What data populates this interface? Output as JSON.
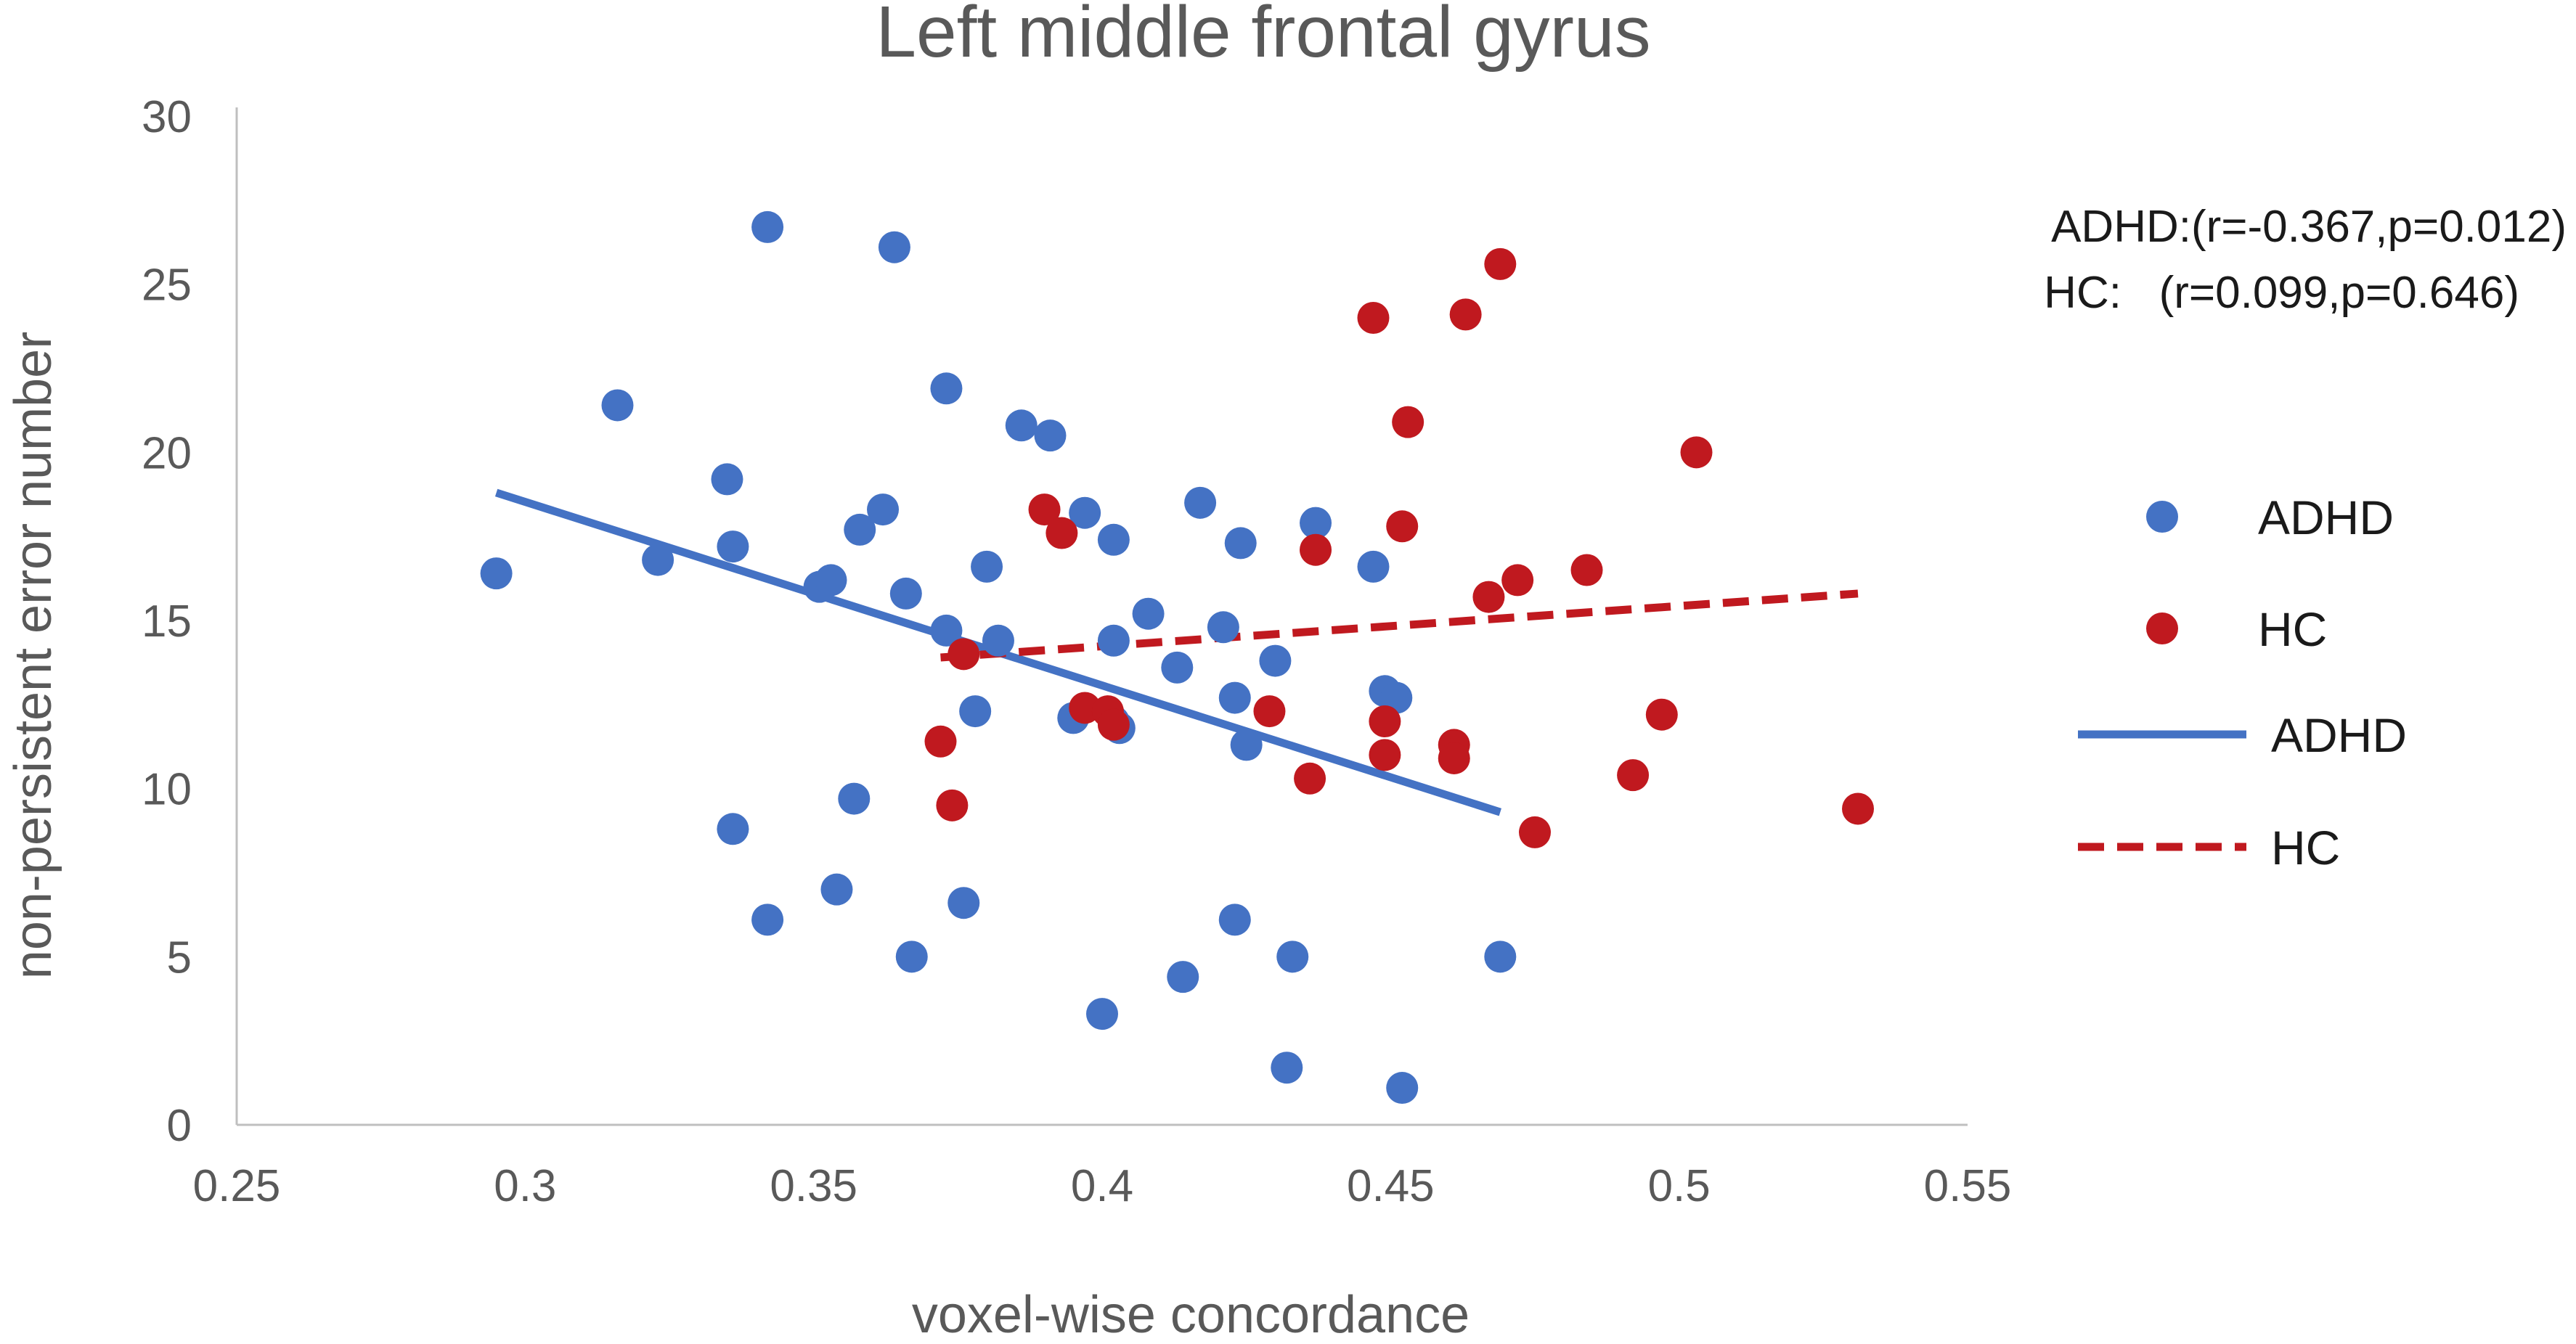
{
  "chart_data": {
    "type": "scatter",
    "title": "Left middle frontal gyrus",
    "xlabel": "voxel-wise concordance",
    "ylabel": "non-persistent error number",
    "xlim": [
      0.25,
      0.55
    ],
    "ylim": [
      0,
      30
    ],
    "xticks": [
      0.25,
      0.3,
      0.35,
      0.4,
      0.45,
      0.5,
      0.55
    ],
    "xtick_labels": [
      "0.25",
      "0.3",
      "0.35",
      "0.4",
      "0.45",
      "0.5",
      "0.55"
    ],
    "yticks": [
      0,
      5,
      10,
      15,
      20,
      25,
      30
    ],
    "ytick_labels": [
      "0",
      "5",
      "10",
      "15",
      "20",
      "25",
      "30"
    ],
    "grid": false,
    "legend_position": "right",
    "annotations": [
      "ADHD:(r=-0.367,p=0.012)",
      "HC:   (r=0.099,p=0.646)"
    ],
    "series": [
      {
        "name": "ADHD",
        "kind": "points",
        "color": "#4472c4",
        "points": [
          [
            0.295,
            16.4
          ],
          [
            0.316,
            21.4
          ],
          [
            0.323,
            16.8
          ],
          [
            0.335,
            19.2
          ],
          [
            0.336,
            17.2
          ],
          [
            0.336,
            8.8
          ],
          [
            0.342,
            26.7
          ],
          [
            0.342,
            6.1
          ],
          [
            0.351,
            16.0
          ],
          [
            0.353,
            16.2
          ],
          [
            0.354,
            7.0
          ],
          [
            0.357,
            9.7
          ],
          [
            0.358,
            17.7
          ],
          [
            0.362,
            18.3
          ],
          [
            0.364,
            26.1
          ],
          [
            0.366,
            15.8
          ],
          [
            0.367,
            5.0
          ],
          [
            0.373,
            21.9
          ],
          [
            0.373,
            14.7
          ],
          [
            0.376,
            6.6
          ],
          [
            0.378,
            12.3
          ],
          [
            0.38,
            16.6
          ],
          [
            0.382,
            14.4
          ],
          [
            0.386,
            20.8
          ],
          [
            0.391,
            20.5
          ],
          [
            0.395,
            12.1
          ],
          [
            0.397,
            18.2
          ],
          [
            0.4,
            3.3
          ],
          [
            0.402,
            17.4
          ],
          [
            0.402,
            14.4
          ],
          [
            0.402,
            12.0
          ],
          [
            0.403,
            11.8
          ],
          [
            0.408,
            15.2
          ],
          [
            0.413,
            13.6
          ],
          [
            0.414,
            4.4
          ],
          [
            0.417,
            18.5
          ],
          [
            0.421,
            14.8
          ],
          [
            0.423,
            12.7
          ],
          [
            0.423,
            6.1
          ],
          [
            0.424,
            17.3
          ],
          [
            0.425,
            11.3
          ],
          [
            0.43,
            13.8
          ],
          [
            0.432,
            1.7
          ],
          [
            0.433,
            5.0
          ],
          [
            0.437,
            17.9
          ],
          [
            0.447,
            16.6
          ],
          [
            0.449,
            12.9
          ],
          [
            0.451,
            12.7
          ],
          [
            0.452,
            1.1
          ],
          [
            0.469,
            5.0
          ]
        ]
      },
      {
        "name": "HC",
        "kind": "points",
        "color": "#c0191f",
        "points": [
          [
            0.372,
            11.4
          ],
          [
            0.374,
            9.5
          ],
          [
            0.376,
            14.0
          ],
          [
            0.39,
            18.3
          ],
          [
            0.393,
            17.6
          ],
          [
            0.397,
            12.4
          ],
          [
            0.401,
            12.3
          ],
          [
            0.402,
            11.9
          ],
          [
            0.429,
            12.3
          ],
          [
            0.436,
            10.3
          ],
          [
            0.437,
            17.1
          ],
          [
            0.447,
            24.0
          ],
          [
            0.449,
            12.0
          ],
          [
            0.449,
            11.0
          ],
          [
            0.452,
            17.8
          ],
          [
            0.453,
            20.9
          ],
          [
            0.461,
            11.3
          ],
          [
            0.461,
            10.9
          ],
          [
            0.463,
            24.1
          ],
          [
            0.467,
            15.7
          ],
          [
            0.469,
            25.6
          ],
          [
            0.472,
            16.2
          ],
          [
            0.475,
            8.7
          ],
          [
            0.484,
            16.5
          ],
          [
            0.492,
            10.4
          ],
          [
            0.497,
            12.2
          ],
          [
            0.503,
            20.0
          ],
          [
            0.531,
            9.4
          ]
        ]
      },
      {
        "name": "ADHD",
        "kind": "trendline",
        "color": "#4472c4",
        "dash": "solid",
        "x": [
          0.295,
          0.469
        ],
        "y": [
          18.8,
          9.3
        ]
      },
      {
        "name": "HC",
        "kind": "trendline",
        "color": "#c0191f",
        "dash": "dashed",
        "x": [
          0.372,
          0.531
        ],
        "y": [
          13.9,
          15.8
        ]
      }
    ]
  }
}
